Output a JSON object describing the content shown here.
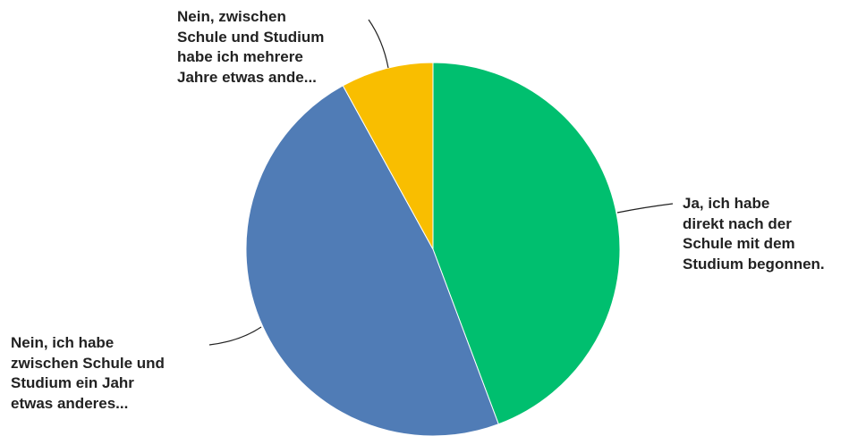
{
  "chart_data": {
    "type": "pie",
    "start_angle_deg": 0,
    "direction": "clockwise",
    "slices": [
      {
        "label_lines": [
          "Ja, ich habe",
          "direkt nach der",
          "Schule mit dem",
          "Studium begonnen."
        ],
        "value": 44.3,
        "color": "#00bf6f"
      },
      {
        "label_lines": [
          "Nein, ich habe",
          "zwischen Schule und",
          "Studium ein Jahr",
          "etwas anderes..."
        ],
        "value": 47.7,
        "color": "#507cb6"
      },
      {
        "label_lines": [
          "Nein, zwischen",
          "Schule und Studium",
          "habe ich mehrere",
          "Jahre etwas ande..."
        ],
        "value": 8.0,
        "color": "#f9be00"
      }
    ]
  }
}
